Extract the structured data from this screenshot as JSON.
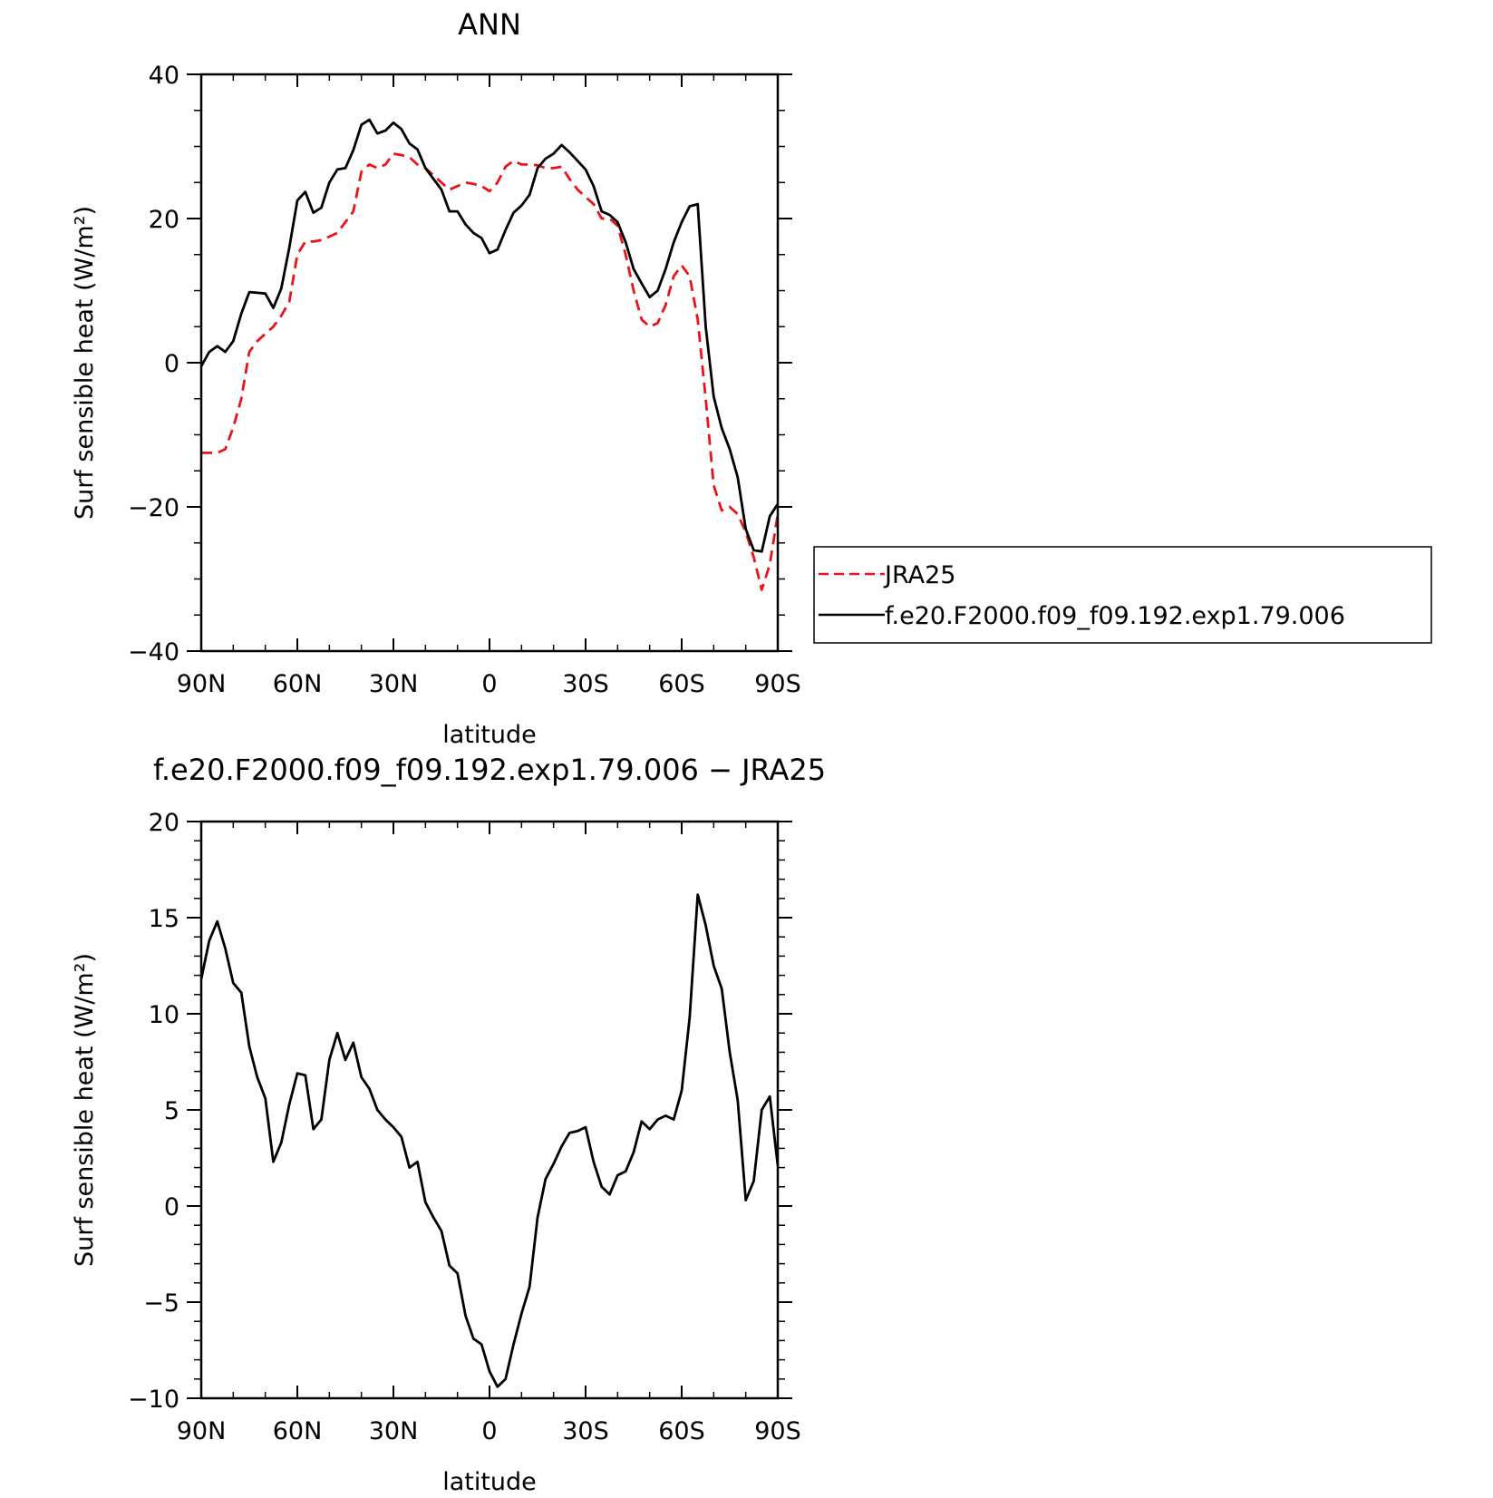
{
  "chart_data": [
    {
      "type": "line",
      "title": "ANN",
      "xlabel": "latitude",
      "ylabel": "Surf sensible heat (W/m²)",
      "xlim": [
        90,
        -90
      ],
      "ylim": [
        -40,
        40
      ],
      "xticks": [
        90,
        60,
        30,
        0,
        -30,
        -60,
        -90
      ],
      "xtick_labels": [
        "90N",
        "60N",
        "30N",
        "0",
        "30S",
        "60S",
        "90S"
      ],
      "yticks": [
        -40,
        -20,
        0,
        20,
        40
      ],
      "ytick_labels": [
        "−40",
        "−20",
        "0",
        "20",
        "40"
      ],
      "grid": false,
      "legend_position": "outside-right",
      "series": [
        {
          "name": "JRA25",
          "color": "#e8141b",
          "dash": "dashed",
          "x": [
            90,
            87.5,
            85,
            82.5,
            80,
            77.5,
            75,
            72.5,
            70,
            67.5,
            65,
            62.5,
            60,
            57.5,
            55,
            52.5,
            50,
            47.5,
            45,
            42.5,
            40,
            37.5,
            35,
            32.5,
            30,
            27.5,
            25,
            22.5,
            20,
            17.5,
            15,
            12.5,
            10,
            7.5,
            5,
            2.5,
            0,
            -2.5,
            -5,
            -7.5,
            -10,
            -12.5,
            -15,
            -17.5,
            -20,
            -22.5,
            -25,
            -27.5,
            -30,
            -32.5,
            -35,
            -37.5,
            -40,
            -42.5,
            -45,
            -47.5,
            -50,
            -52.5,
            -55,
            -57.5,
            -60,
            -62.5,
            -65,
            -67.5,
            -70,
            -72.5,
            -75,
            -77.5,
            -80,
            -82.5,
            -85,
            -87.5,
            -90
          ],
          "y": [
            -12.5,
            -12.5,
            -12.5,
            -12.0,
            -9.0,
            -5.0,
            1.5,
            3.0,
            4.0,
            5.0,
            6.5,
            8.5,
            15.0,
            16.8,
            16.8,
            17.0,
            17.5,
            18.0,
            19.5,
            21.0,
            26.5,
            27.5,
            27.0,
            27.5,
            29.0,
            28.8,
            28.5,
            27.5,
            27.0,
            26.0,
            25.0,
            24.0,
            24.5,
            25.0,
            24.8,
            24.5,
            23.8,
            25.0,
            27.2,
            28.0,
            27.5,
            27.5,
            27.4,
            27.0,
            27.0,
            27.2,
            25.5,
            24.0,
            23.0,
            22.0,
            20.0,
            20.0,
            19.0,
            15.0,
            10.0,
            6.0,
            5.0,
            5.5,
            8.0,
            12.0,
            13.5,
            12.0,
            6.0,
            -5.0,
            -17.0,
            -20.5,
            -20.0,
            -21.0,
            -23.5,
            -27.0,
            -31.5,
            -28.0,
            -21.0
          ]
        },
        {
          "name": "f.e20.F2000.f09_f09.192.exp1.79.006",
          "color": "#000000",
          "dash": "solid",
          "x": [
            90,
            87.5,
            85,
            82.5,
            80,
            77.5,
            75,
            72.5,
            70,
            67.5,
            65,
            62.5,
            60,
            57.5,
            55,
            52.5,
            50,
            47.5,
            45,
            42.5,
            40,
            37.5,
            35,
            32.5,
            30,
            27.5,
            25,
            22.5,
            20,
            17.5,
            15,
            12.5,
            10,
            7.5,
            5,
            2.5,
            0,
            -2.5,
            -5,
            -7.5,
            -10,
            -12.5,
            -15,
            -17.5,
            -20,
            -22.5,
            -25,
            -27.5,
            -30,
            -32.5,
            -35,
            -37.5,
            -40,
            -42.5,
            -45,
            -47.5,
            -50,
            -52.5,
            -55,
            -57.5,
            -60,
            -62.5,
            -65,
            -67.5,
            -70,
            -72.5,
            -75,
            -77.5,
            -80,
            -82.5,
            -85,
            -87.5,
            -90
          ],
          "y": [
            -0.5,
            1.5,
            2.3,
            1.5,
            3.0,
            6.8,
            9.8,
            9.7,
            9.6,
            7.6,
            10.3,
            16.0,
            22.5,
            23.7,
            20.8,
            21.5,
            25.0,
            26.8,
            27.0,
            29.5,
            33.0,
            33.7,
            31.8,
            32.2,
            33.3,
            32.4,
            30.4,
            29.6,
            27.0,
            25.5,
            24.0,
            21.0,
            21.0,
            19.2,
            18.0,
            17.3,
            15.2,
            15.7,
            18.4,
            20.8,
            21.8,
            23.3,
            27.0,
            28.3,
            29.0,
            30.2,
            29.2,
            28.0,
            26.8,
            24.5,
            21.0,
            20.5,
            19.5,
            16.7,
            13.0,
            11.0,
            9.1,
            10.0,
            13.0,
            16.7,
            19.5,
            21.7,
            22.0,
            5.0,
            -4.7,
            -9.1,
            -12.0,
            -15.9,
            -23.1,
            -26.0,
            -26.2,
            -21.3,
            -19.6
          ]
        }
      ],
      "legend": {
        "entries": [
          "JRA25",
          "f.e20.F2000.f09_f09.192.exp1.79.006"
        ]
      }
    },
    {
      "type": "line",
      "title": "f.e20.F2000.f09_f09.192.exp1.79.006 − JRA25",
      "xlabel": "latitude",
      "ylabel": "Surf sensible heat (W/m²)",
      "xlim": [
        90,
        -90
      ],
      "ylim": [
        -10,
        20
      ],
      "xticks": [
        90,
        60,
        30,
        0,
        -30,
        -60,
        -90
      ],
      "xtick_labels": [
        "90N",
        "60N",
        "30N",
        "0",
        "30S",
        "60S",
        "90S"
      ],
      "yticks": [
        -10,
        -5,
        0,
        5,
        10,
        15,
        20
      ],
      "ytick_labels": [
        "−10",
        "−5",
        "0",
        "5",
        "10",
        "15",
        "20"
      ],
      "grid": false,
      "series": [
        {
          "color": "#000000",
          "dash": "solid",
          "x": [
            90,
            87.5,
            85,
            82.5,
            80,
            77.5,
            75,
            72.5,
            70,
            67.5,
            65,
            62.5,
            60,
            57.5,
            55,
            52.5,
            50,
            47.5,
            45,
            42.5,
            40,
            37.5,
            35,
            32.5,
            30,
            27.5,
            25,
            22.5,
            20,
            17.5,
            15,
            12.5,
            10,
            7.5,
            5,
            2.5,
            0,
            -2.5,
            -5,
            -7.5,
            -10,
            -12.5,
            -15,
            -17.5,
            -20,
            -22.5,
            -25,
            -27.5,
            -30,
            -32.5,
            -35,
            -37.5,
            -40,
            -42.5,
            -45,
            -47.5,
            -50,
            -52.5,
            -55,
            -57.5,
            -60,
            -62.5,
            -65,
            -67.5,
            -70,
            -72.5,
            -75,
            -77.5,
            -80,
            -82.5,
            -85,
            -87.5,
            -90
          ],
          "y": [
            11.8,
            13.8,
            14.8,
            13.4,
            11.6,
            11.1,
            8.3,
            6.7,
            5.6,
            2.3,
            3.3,
            5.3,
            6.9,
            6.8,
            4.0,
            4.5,
            7.6,
            9.0,
            7.6,
            8.5,
            6.7,
            6.1,
            5.0,
            4.5,
            4.1,
            3.6,
            2.0,
            2.3,
            0.2,
            -0.6,
            -1.3,
            -3.1,
            -3.5,
            -5.7,
            -6.9,
            -7.2,
            -8.6,
            -9.4,
            -9.0,
            -7.2,
            -5.6,
            -4.2,
            -0.6,
            1.4,
            2.2,
            3.1,
            3.8,
            3.9,
            4.1,
            2.3,
            1.0,
            0.6,
            1.6,
            1.8,
            2.8,
            4.4,
            4.0,
            4.5,
            4.7,
            4.5,
            6.0,
            9.8,
            16.2,
            14.6,
            12.5,
            11.3,
            8.0,
            5.5,
            0.3,
            1.3,
            5.0,
            5.7,
            2.1
          ]
        }
      ]
    }
  ]
}
